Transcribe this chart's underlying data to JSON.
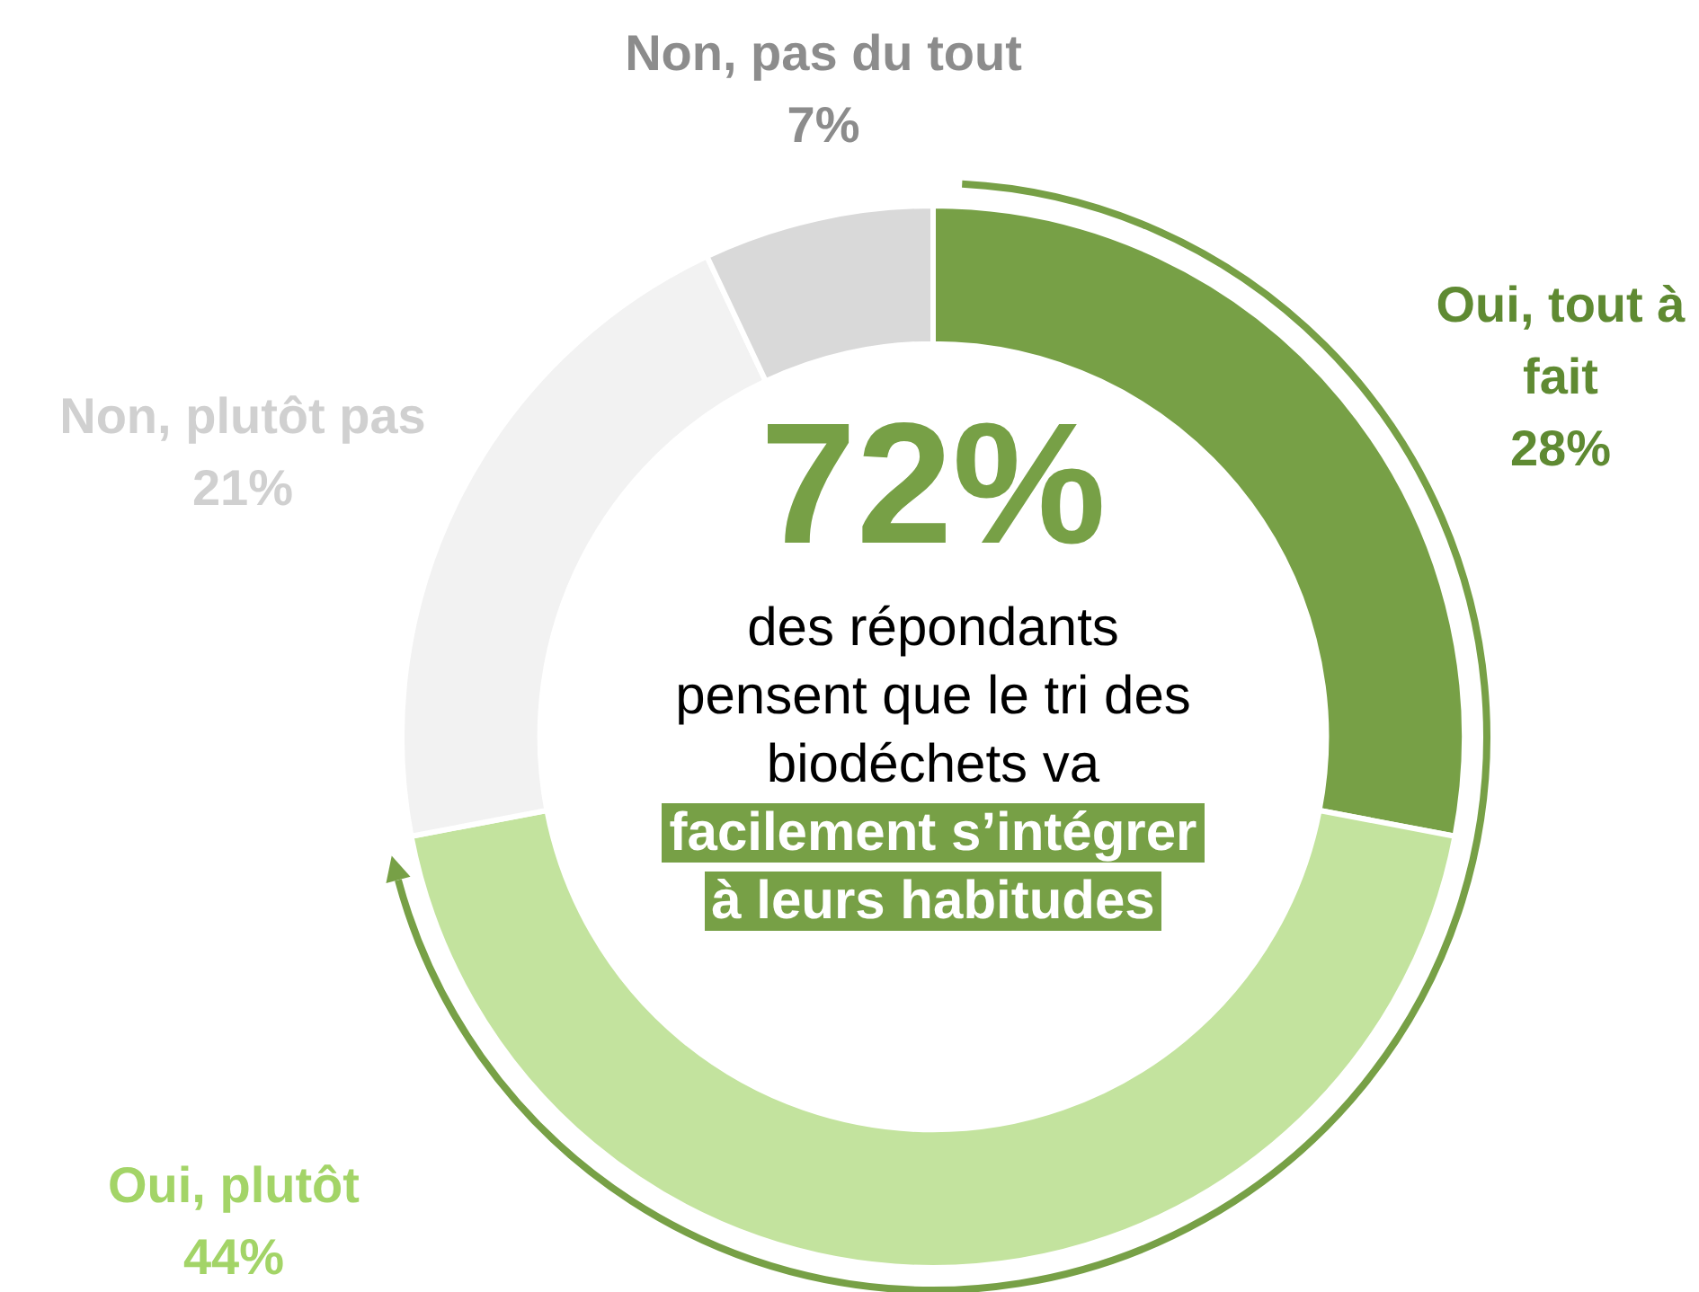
{
  "chart_data": {
    "type": "donut",
    "categories": [
      "Oui, tout à fait",
      "Oui, plutôt",
      "Non, plutôt pas",
      "Non, pas du tout"
    ],
    "values": [
      28,
      44,
      21,
      7
    ],
    "colors": [
      "#77a046",
      "#c3e39e",
      "#f2f2f2",
      "#d9d9d9"
    ],
    "value_labels": [
      "28%",
      "44%",
      "21%",
      "7%"
    ],
    "legend": false,
    "annotations": [
      "72%",
      "des répondants pensent que le tri des biodéchets va",
      "facilement s’intégrer à leurs habitudes"
    ]
  }
}
